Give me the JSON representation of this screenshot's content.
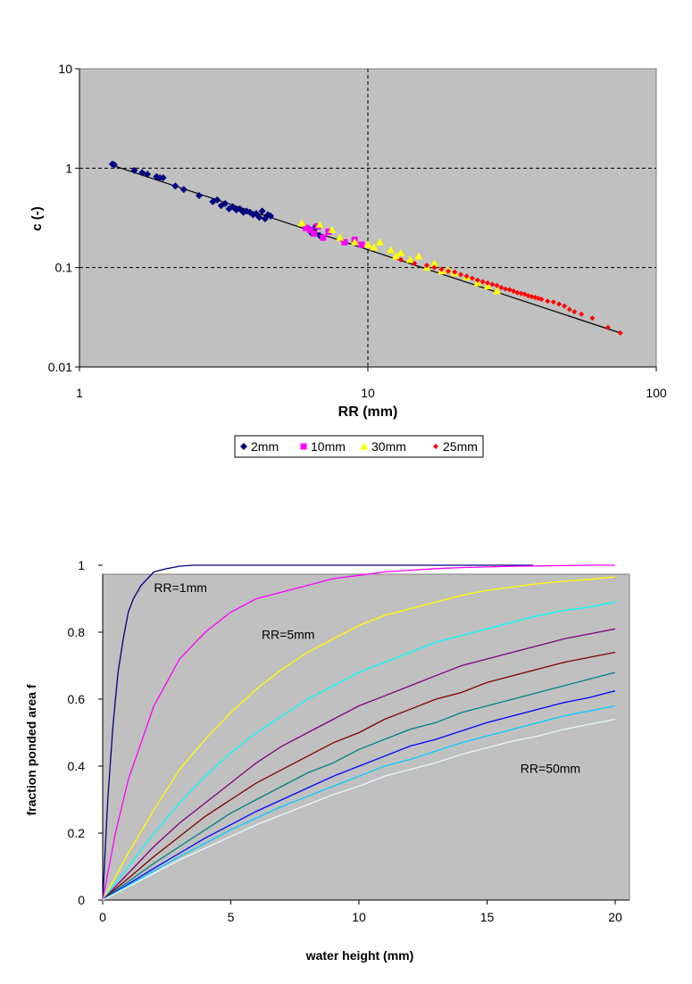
{
  "chart_data": [
    {
      "type": "scatter",
      "title": "",
      "xlabel": "RR (mm)",
      "ylabel": "c (-)",
      "xscale": "log",
      "yscale": "log",
      "xlim": [
        1,
        100
      ],
      "ylim": [
        0.01,
        10
      ],
      "x_ticks": [
        "1",
        "10",
        "100"
      ],
      "y_ticks": [
        "0.01",
        "0.1",
        "1",
        "10"
      ],
      "grid": "dashed major gridlines",
      "plot_background": "#c0c0c0",
      "legend_position": "bottom",
      "trendline": {
        "x": [
          1.3,
          75
        ],
        "y": [
          1.07,
          0.022
        ]
      },
      "series": [
        {
          "name": "2mm",
          "color": "#00007f",
          "marker": "diamond",
          "x": [
            1.3,
            1.32,
            1.55,
            1.65,
            1.72,
            1.85,
            1.9,
            1.95,
            2.15,
            2.3,
            2.6,
            2.9,
            3.0,
            3.1,
            3.2,
            3.3,
            3.4,
            3.5,
            3.6,
            3.7,
            3.8,
            3.9,
            4.0,
            4.1,
            4.2,
            4.3,
            4.4,
            4.5,
            4.6,
            6.2,
            6.4,
            6.5,
            6.6,
            6.8
          ],
          "y": [
            1.1,
            1.08,
            0.95,
            0.9,
            0.87,
            0.82,
            0.8,
            0.8,
            0.66,
            0.61,
            0.53,
            0.46,
            0.48,
            0.42,
            0.44,
            0.39,
            0.41,
            0.38,
            0.39,
            0.36,
            0.37,
            0.36,
            0.34,
            0.35,
            0.32,
            0.37,
            0.31,
            0.34,
            0.33,
            0.25,
            0.22,
            0.24,
            0.26,
            0.21
          ]
        },
        {
          "name": "10mm",
          "color": "#ff00ff",
          "marker": "square",
          "x": [
            6.1,
            6.3,
            6.5,
            6.7,
            7.0,
            7.3,
            8.3,
            9.0,
            9.5
          ],
          "y": [
            0.25,
            0.24,
            0.22,
            0.26,
            0.2,
            0.23,
            0.18,
            0.19,
            0.17
          ]
        },
        {
          "name": "30mm",
          "color": "#ffff00",
          "marker": "triangle",
          "x": [
            5.9,
            6.8,
            7.5,
            8.0,
            9.0,
            10.0,
            10.5,
            11.0,
            12.0,
            12.5,
            13.0,
            14.0,
            15.0,
            16.0,
            17.0,
            18.0,
            19.0,
            20.0,
            22.0,
            24.0,
            26.0,
            28.0
          ],
          "y": [
            0.28,
            0.27,
            0.24,
            0.2,
            0.18,
            0.17,
            0.16,
            0.18,
            0.15,
            0.13,
            0.14,
            0.12,
            0.13,
            0.1,
            0.11,
            0.092,
            0.095,
            0.088,
            0.08,
            0.07,
            0.065,
            0.058
          ]
        },
        {
          "name": "25mm",
          "color": "#ff0000",
          "marker": "diamond-small",
          "x": [
            13.0,
            14.5,
            16.0,
            17.0,
            18.0,
            19.0,
            20.0,
            21.0,
            22.0,
            23.0,
            24.0,
            25.0,
            26.0,
            27.0,
            28.0,
            29.0,
            30.0,
            31.0,
            32.0,
            33.0,
            34.0,
            35.0,
            36.0,
            37.0,
            38.0,
            39.0,
            40.0,
            42.0,
            44.0,
            46.0,
            48.0,
            50.0,
            52.0,
            55.0,
            60.0,
            68.0,
            75.0
          ],
          "y": [
            0.12,
            0.11,
            0.105,
            0.1,
            0.096,
            0.092,
            0.09,
            0.085,
            0.082,
            0.078,
            0.075,
            0.072,
            0.07,
            0.068,
            0.066,
            0.063,
            0.061,
            0.06,
            0.058,
            0.056,
            0.055,
            0.054,
            0.052,
            0.051,
            0.05,
            0.049,
            0.048,
            0.046,
            0.045,
            0.043,
            0.041,
            0.038,
            0.036,
            0.034,
            0.031,
            0.025,
            0.022
          ]
        }
      ]
    },
    {
      "type": "line",
      "title": "",
      "xlabel": "water height (mm)",
      "ylabel": "fraction ponded area f",
      "xlim": [
        0,
        20
      ],
      "ylim": [
        0,
        1
      ],
      "x_ticks": [
        "0",
        "5",
        "10",
        "15",
        "20"
      ],
      "y_ticks": [
        "0",
        "0.2",
        "0.4",
        "0.6",
        "0.8",
        "1"
      ],
      "grid": "none",
      "plot_background": "#c0c0c0",
      "annotations": [
        {
          "text": "RR=1mm",
          "x": 2.0,
          "y": 0.92
        },
        {
          "text": "RR=5mm",
          "x": 6.2,
          "y": 0.78
        },
        {
          "text": "RR=50mm",
          "x": 16.3,
          "y": 0.38
        }
      ],
      "x": [
        0,
        0.5,
        1,
        2,
        3,
        4,
        5,
        6,
        7,
        8,
        9,
        10,
        11,
        12,
        13,
        14,
        15,
        16,
        17,
        18,
        19,
        20
      ],
      "series": [
        {
          "color": "#000080",
          "x": [
            0,
            0.2,
            0.4,
            0.6,
            0.8,
            1,
            1.2,
            1.5,
            2,
            2.5,
            3,
            3.5,
            4,
            5,
            6,
            8,
            10,
            12,
            14,
            16,
            16.8
          ],
          "values": [
            0,
            0.3,
            0.52,
            0.68,
            0.78,
            0.86,
            0.9,
            0.94,
            0.98,
            0.99,
            0.997,
            1,
            1,
            1,
            1,
            1,
            1,
            1,
            1,
            1,
            1
          ]
        },
        {
          "color": "#ff00ff",
          "values": [
            0,
            0.2,
            0.36,
            0.58,
            0.72,
            0.8,
            0.86,
            0.9,
            0.92,
            0.94,
            0.96,
            0.97,
            0.98,
            0.985,
            0.99,
            0.993,
            0.995,
            0.997,
            0.998,
            0.999,
            1,
            1
          ]
        },
        {
          "color": "#ffff00",
          "values": [
            0,
            0.07,
            0.14,
            0.27,
            0.39,
            0.48,
            0.56,
            0.63,
            0.69,
            0.74,
            0.78,
            0.82,
            0.85,
            0.87,
            0.89,
            0.91,
            0.925,
            0.935,
            0.945,
            0.952,
            0.958,
            0.965
          ]
        },
        {
          "color": "#00ffff",
          "values": [
            0,
            0.05,
            0.1,
            0.2,
            0.29,
            0.37,
            0.44,
            0.5,
            0.55,
            0.6,
            0.64,
            0.68,
            0.71,
            0.74,
            0.77,
            0.79,
            0.81,
            0.83,
            0.85,
            0.865,
            0.875,
            0.89
          ]
        },
        {
          "color": "#800080",
          "values": [
            0,
            0.04,
            0.08,
            0.16,
            0.23,
            0.29,
            0.35,
            0.41,
            0.46,
            0.5,
            0.54,
            0.58,
            0.61,
            0.64,
            0.67,
            0.7,
            0.72,
            0.74,
            0.76,
            0.78,
            0.795,
            0.81
          ]
        },
        {
          "color": "#800000",
          "values": [
            0,
            0.033,
            0.065,
            0.13,
            0.19,
            0.25,
            0.3,
            0.35,
            0.39,
            0.43,
            0.47,
            0.5,
            0.54,
            0.57,
            0.6,
            0.62,
            0.65,
            0.67,
            0.69,
            0.71,
            0.725,
            0.74
          ]
        },
        {
          "color": "#008080",
          "values": [
            0,
            0.028,
            0.055,
            0.11,
            0.16,
            0.21,
            0.26,
            0.3,
            0.34,
            0.38,
            0.41,
            0.45,
            0.48,
            0.51,
            0.53,
            0.56,
            0.58,
            0.6,
            0.62,
            0.64,
            0.66,
            0.68
          ]
        },
        {
          "color": "#0000ff",
          "values": [
            0,
            0.024,
            0.048,
            0.095,
            0.14,
            0.185,
            0.225,
            0.265,
            0.3,
            0.335,
            0.37,
            0.4,
            0.43,
            0.46,
            0.48,
            0.505,
            0.53,
            0.55,
            0.57,
            0.59,
            0.605,
            0.625
          ]
        },
        {
          "color": "#00ccff",
          "values": [
            0,
            0.022,
            0.044,
            0.087,
            0.13,
            0.17,
            0.21,
            0.245,
            0.28,
            0.31,
            0.34,
            0.37,
            0.4,
            0.42,
            0.445,
            0.47,
            0.49,
            0.51,
            0.53,
            0.55,
            0.565,
            0.58
          ]
        },
        {
          "color": "#e8f8ff",
          "values": [
            0,
            0.02,
            0.04,
            0.08,
            0.12,
            0.155,
            0.19,
            0.225,
            0.255,
            0.285,
            0.315,
            0.34,
            0.37,
            0.39,
            0.41,
            0.435,
            0.455,
            0.475,
            0.49,
            0.51,
            0.525,
            0.54
          ]
        }
      ]
    }
  ]
}
